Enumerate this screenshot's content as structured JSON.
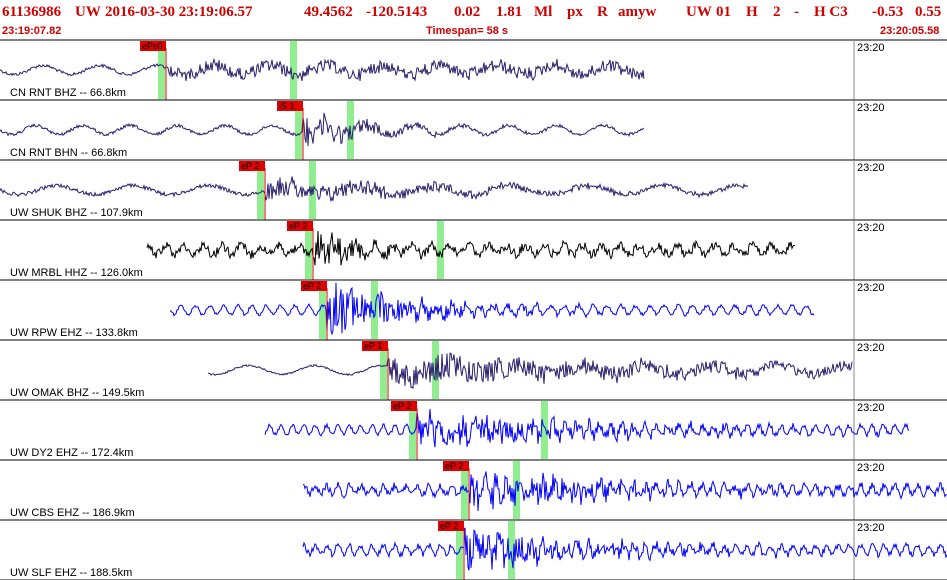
{
  "header": {
    "event_id": "61136986",
    "network": "UW",
    "datetime": "2016-03-30 23:19:06.57",
    "lat": "49.4562",
    "lon": "-120.5143",
    "depth": "0.02",
    "magnitude": "1.81",
    "mag_type": "Ml",
    "evtype": "px",
    "review": "R",
    "author": "amyw",
    "src": "UW",
    "version": "01",
    "flag": "H",
    "count": "2",
    "dash": "-",
    "hc": "H C3",
    "v1": "-0.53",
    "v2": "0.55"
  },
  "subheader": {
    "start_time": "23:19:07.82",
    "timespan": "Timespan=  58 s",
    "end_time": "23:20:05.58"
  },
  "colors": {
    "header_text": "#d00000",
    "grid": "#000000",
    "pick_box": "#e00000",
    "pick_text": "#000000",
    "window": "#90ee90",
    "trace_navy": "#2a1f6e",
    "trace_black": "#000000",
    "trace_blue": "#0000ff"
  },
  "traces": [
    {
      "label": "CN RNT BHZ -- 66.8km",
      "pick": "ePs0",
      "time_label": "23:20",
      "color": "navy",
      "data": {
        "start": 0.0,
        "end": 0.68,
        "pick": 0.175,
        "amp": 0.2,
        "noise": 0.05,
        "period": 0.06,
        "decay": 0.0
      }
    },
    {
      "label": "CN RNT BHN -- 66.8km",
      "pick": "iS 1",
      "time_label": "23:20",
      "color": "navy",
      "data": {
        "start": 0.0,
        "end": 0.68,
        "pick": 0.32,
        "amp": 0.6,
        "noise": 0.05,
        "period": 0.05,
        "decay": 3.0
      }
    },
    {
      "label": "UW SHUK BHZ -- 107.9km",
      "pick": "eP 2",
      "time_label": "23:20",
      "color": "navy",
      "data": {
        "start": 0.0,
        "end": 0.79,
        "pick": 0.28,
        "amp": 0.4,
        "noise": 0.06,
        "period": 0.08,
        "decay": 1.0
      }
    },
    {
      "label": "UW MRBL HHZ -- 126.0km",
      "pick": "eP 2",
      "time_label": "23:20",
      "color": "black",
      "data": {
        "start": 0.155,
        "end": 0.84,
        "pick": 0.33,
        "amp": 0.7,
        "noise": 0.15,
        "period": 0.02,
        "decay": 4.0
      }
    },
    {
      "label": "UW RPW EHZ -- 133.8km",
      "pick": "eP 2",
      "time_label": "23:20",
      "color": "blue",
      "data": {
        "start": 0.18,
        "end": 0.86,
        "pick": 0.345,
        "amp": 0.9,
        "noise": 0.05,
        "period": 0.015,
        "decay": 2.0
      }
    },
    {
      "label": "UW OMAK BHZ -- 149.5km",
      "pick": "eP 1",
      "time_label": "23:20",
      "color": "navy",
      "data": {
        "start": 0.22,
        "end": 0.9,
        "pick": 0.41,
        "amp": 0.5,
        "noise": 0.03,
        "period": 0.07,
        "decay": 0.5
      }
    },
    {
      "label": "UW DY2 EHZ -- 172.4km",
      "pick": "eP 2",
      "time_label": "23:20",
      "color": "blue",
      "data": {
        "start": 0.28,
        "end": 0.96,
        "pick": 0.44,
        "amp": 0.6,
        "noise": 0.06,
        "period": 0.012,
        "decay": 1.0
      }
    },
    {
      "label": "UW CBS EHZ -- 186.9km",
      "pick": "eP 2",
      "time_label": "23:20",
      "color": "blue",
      "data": {
        "start": 0.32,
        "end": 1.0,
        "pick": 0.495,
        "amp": 0.7,
        "noise": 0.12,
        "period": 0.012,
        "decay": 1.5
      }
    },
    {
      "label": "UW SLF EHZ -- 188.5km",
      "pick": "eP 2",
      "time_label": "23:20",
      "color": "blue",
      "data": {
        "start": 0.32,
        "end": 1.0,
        "pick": 0.49,
        "amp": 0.7,
        "noise": 0.1,
        "period": 0.012,
        "decay": 1.5
      }
    }
  ]
}
